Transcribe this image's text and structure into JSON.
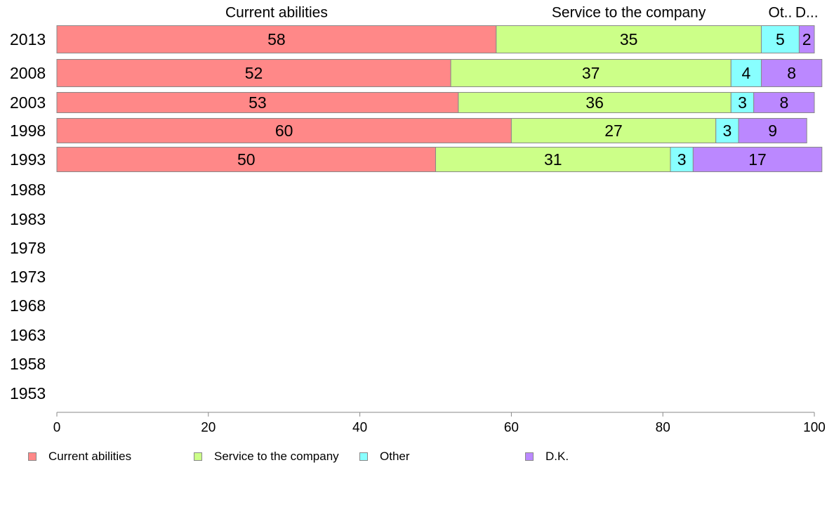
{
  "chart_data": {
    "type": "bar",
    "orientation": "horizontal",
    "stacked": true,
    "categories": [
      "2013",
      "2008",
      "2003",
      "1998",
      "1993",
      "1988",
      "1983",
      "1978",
      "1973",
      "1968",
      "1963",
      "1958",
      "1953"
    ],
    "series": [
      {
        "name": "Current abilities",
        "color": "#ff8888",
        "values": [
          58,
          52,
          53,
          60,
          50,
          null,
          null,
          null,
          null,
          null,
          null,
          null,
          null
        ]
      },
      {
        "name": "Service to the company",
        "color": "#ccff88",
        "values": [
          35,
          37,
          36,
          27,
          31,
          null,
          null,
          null,
          null,
          null,
          null,
          null,
          null
        ]
      },
      {
        "name": "Other",
        "color": "#88ffff",
        "values": [
          5,
          4,
          3,
          3,
          3,
          null,
          null,
          null,
          null,
          null,
          null,
          null,
          null
        ]
      },
      {
        "name": "D.K.",
        "color": "#bb88ff",
        "values": [
          2,
          8,
          8,
          9,
          17,
          null,
          null,
          null,
          null,
          null,
          null,
          null,
          null
        ]
      }
    ],
    "top_labels": [
      "Current abilities",
      "Service to the company",
      "Ot..",
      "D..."
    ],
    "xlim": [
      0,
      100
    ],
    "xticks": [
      "0",
      "20",
      "40",
      "60",
      "80",
      "100"
    ],
    "grid": false,
    "legend_position": "bottom"
  },
  "legend": {
    "items": [
      {
        "label": "Current abilities",
        "color": "#ff8888"
      },
      {
        "label": "Service to the company",
        "color": "#ccff88"
      },
      {
        "label": "Other",
        "color": "#88ffff"
      },
      {
        "label": "D.K.",
        "color": "#bb88ff"
      }
    ]
  }
}
